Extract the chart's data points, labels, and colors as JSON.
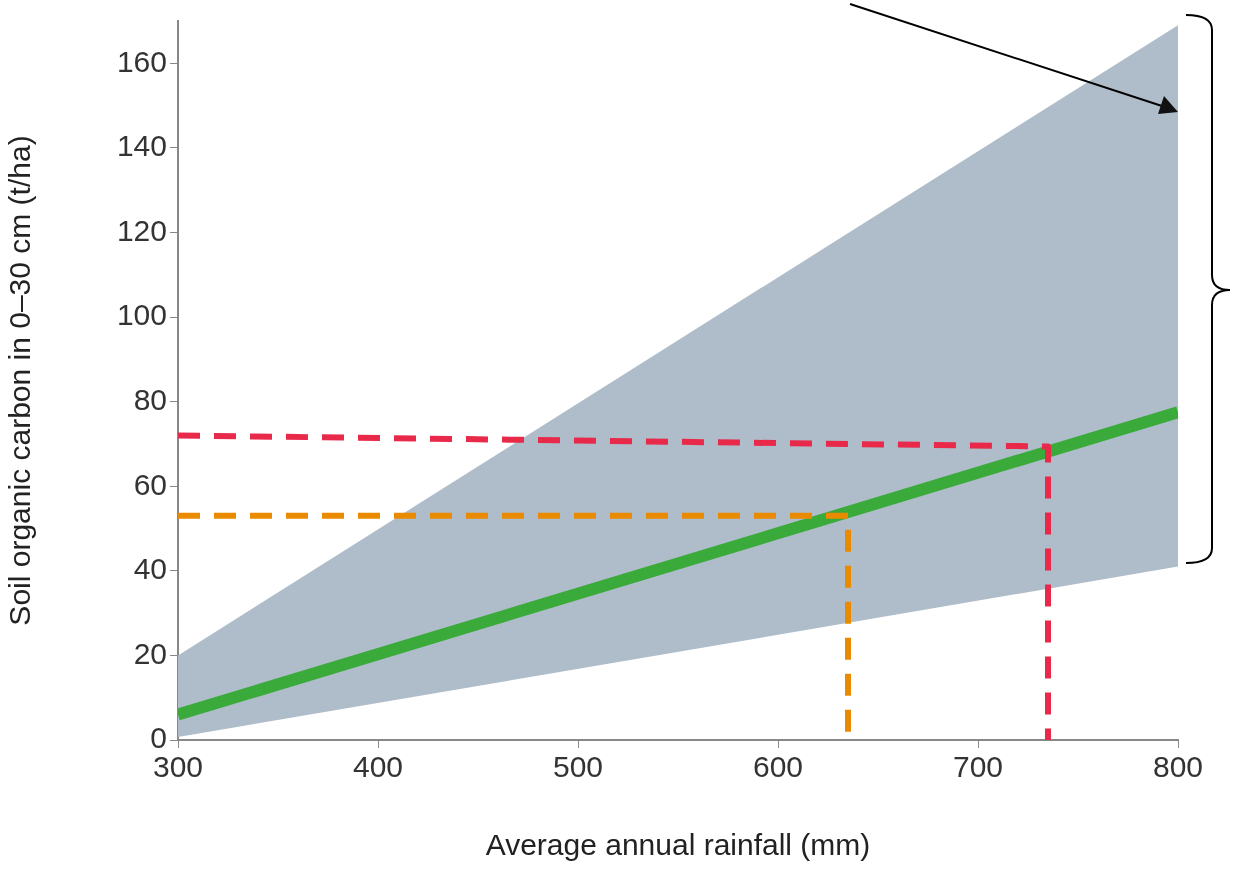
{
  "chart_data": {
    "type": "line",
    "xlabel": "Average annual rainfall (mm)",
    "ylabel": "Soil organic carbon in 0–30 cm (t/ha)",
    "xlim": [
      300,
      800
    ],
    "ylim": [
      0,
      170
    ],
    "xticks": [
      300,
      400,
      500,
      600,
      700,
      800
    ],
    "yticks": [
      0,
      20,
      40,
      60,
      80,
      100,
      120,
      140,
      160
    ],
    "grid": false,
    "marker": "none",
    "series": [
      {
        "color": "#3aaa3a",
        "x": [
          300,
          800
        ],
        "values": [
          6,
          77.5
        ],
        "lower": [
          0.7,
          41
        ],
        "upper": [
          20,
          169
        ]
      },
      {
        "color": "#e8294a",
        "x": [
          300,
          735,
          735
        ],
        "values": [
          72,
          69.4,
          0
        ],
        "line_style": "dashed"
      },
      {
        "color": "#ea8a00",
        "x": [
          300,
          635,
          635
        ],
        "values": [
          53,
          53,
          0
        ],
        "line_style": "dashed"
      }
    ]
  }
}
